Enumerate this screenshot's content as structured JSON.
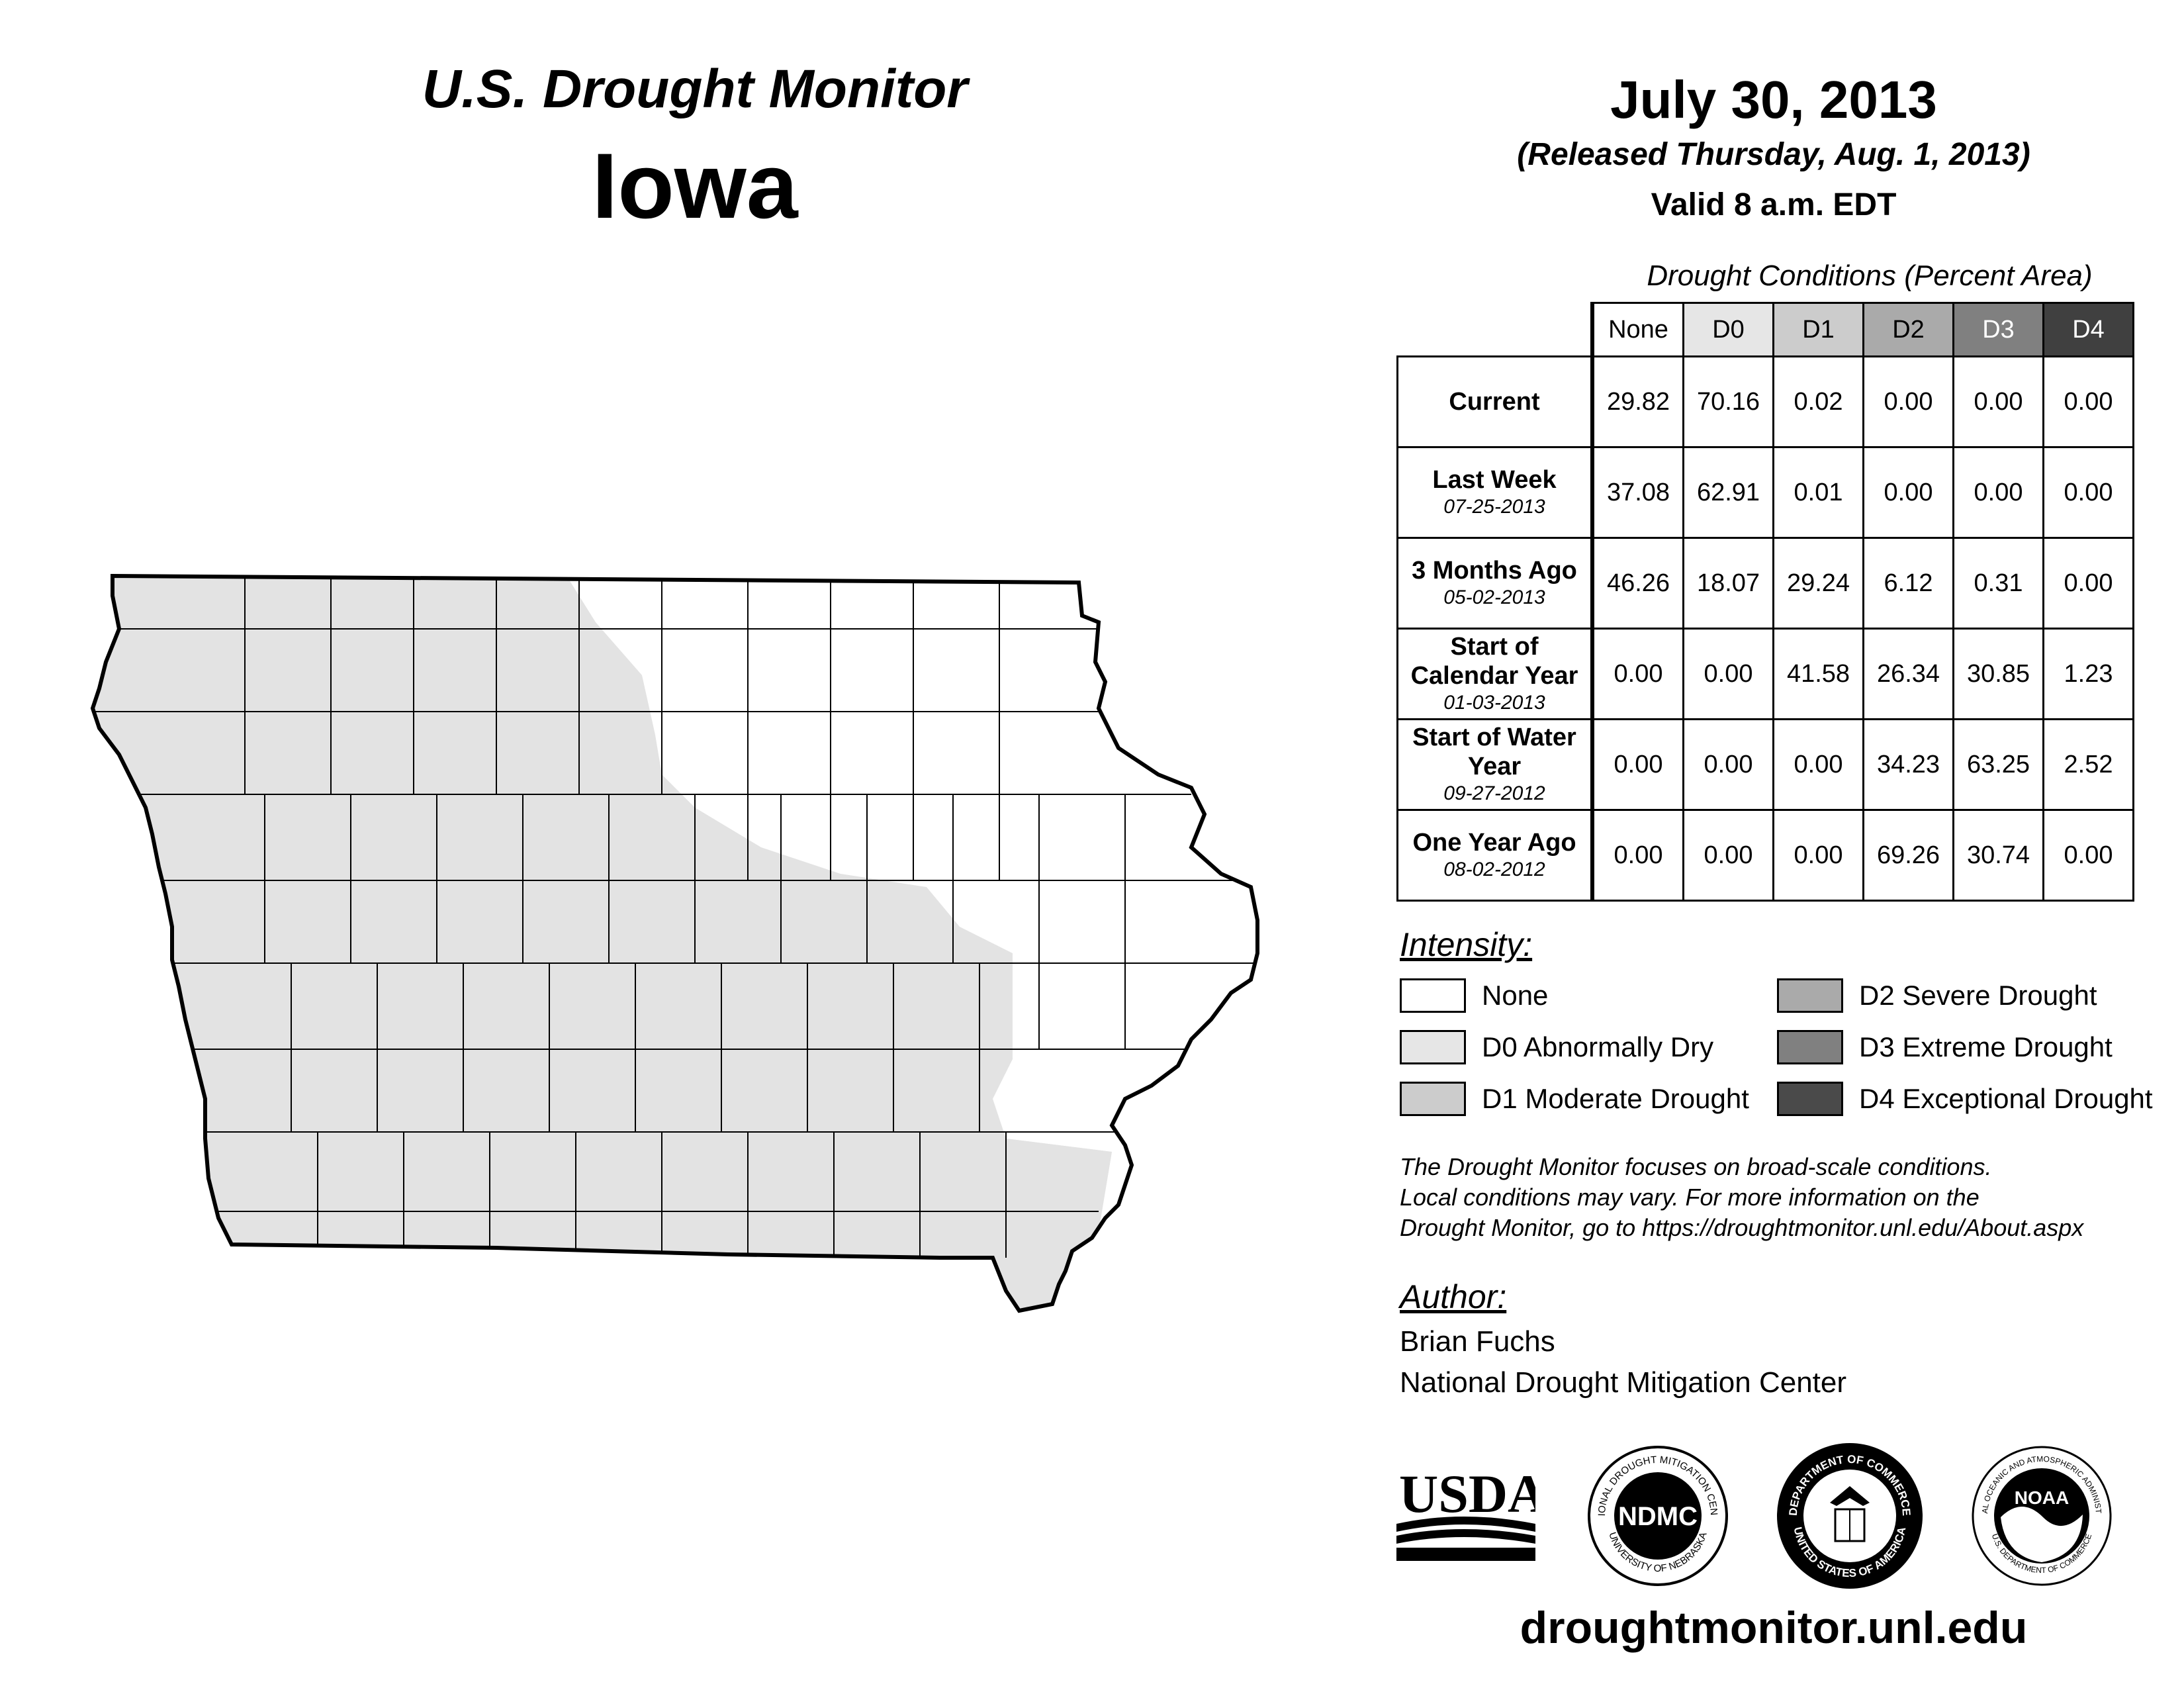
{
  "header": {
    "product": "U.S. Drought Monitor",
    "state": "Iowa",
    "date": "July 30, 2013",
    "released": "(Released Thursday, Aug. 1, 2013)",
    "valid": "Valid 8 a.m. EDT"
  },
  "table": {
    "title": "Drought Conditions (Percent Area)",
    "columns": [
      "None",
      "D0",
      "D1",
      "D2",
      "D3",
      "D4"
    ],
    "column_colors": [
      "#ffffff",
      "#e6e6e6",
      "#cccccc",
      "#aaaaaa",
      "#808080",
      "#404040"
    ],
    "rows": [
      {
        "label": "Current",
        "date": "",
        "values": [
          "29.82",
          "70.16",
          "0.02",
          "0.00",
          "0.00",
          "0.00"
        ]
      },
      {
        "label": "Last Week",
        "date": "07-25-2013",
        "values": [
          "37.08",
          "62.91",
          "0.01",
          "0.00",
          "0.00",
          "0.00"
        ]
      },
      {
        "label": "3 Months Ago",
        "date": "05-02-2013",
        "values": [
          "46.26",
          "18.07",
          "29.24",
          "6.12",
          "0.31",
          "0.00"
        ]
      },
      {
        "label": "Start of Calendar Year",
        "date": "01-03-2013",
        "values": [
          "0.00",
          "0.00",
          "41.58",
          "26.34",
          "30.85",
          "1.23"
        ]
      },
      {
        "label": "Start of Water Year",
        "date": "09-27-2012",
        "values": [
          "0.00",
          "0.00",
          "0.00",
          "34.23",
          "63.25",
          "2.52"
        ]
      },
      {
        "label": "One Year Ago",
        "date": "08-02-2012",
        "values": [
          "0.00",
          "0.00",
          "0.00",
          "69.26",
          "30.74",
          "0.00"
        ]
      }
    ]
  },
  "legend": {
    "title": "Intensity:",
    "items": [
      {
        "label": "None",
        "color": "#ffffff"
      },
      {
        "label": "D0 Abnormally Dry",
        "color": "#e6e6e6"
      },
      {
        "label": "D1 Moderate Drought",
        "color": "#cccccc"
      },
      {
        "label": "D2 Severe Drought",
        "color": "#aaaaaa"
      },
      {
        "label": "D3 Extreme Drought",
        "color": "#808080"
      },
      {
        "label": "D4 Exceptional Drought",
        "color": "#4a4a4a"
      }
    ]
  },
  "note": {
    "line1": "The Drought Monitor focuses on broad-scale conditions.",
    "line2": "Local conditions may vary. For more information on the",
    "line3": "Drought Monitor, go to https://droughtmonitor.unl.edu/About.aspx"
  },
  "author": {
    "title": "Author:",
    "name": "Brian Fuchs",
    "org": "National Drought Mitigation Center"
  },
  "logos": {
    "usda": "USDA",
    "ndmc": "NDMC",
    "ndmc_ring_top": "NATIONAL DROUGHT MITIGATION CENTER",
    "ndmc_ring_bottom": "UNIVERSITY OF NEBRASKA",
    "doc_ring_top": "DEPARTMENT OF COMMERCE",
    "doc_ring_bottom": "UNITED STATES OF AMERICA",
    "noaa": "NOAA",
    "noaa_ring_top": "NATIONAL OCEANIC AND ATMOSPHERIC ADMINISTRATION",
    "noaa_ring_bottom": "U.S. DEPARTMENT OF COMMERCE"
  },
  "website": "droughtmonitor.unl.edu",
  "map": {
    "categories_shown": [
      "None",
      "D0 Abnormally Dry",
      "D1 Moderate Drought"
    ],
    "colors": {
      "none": "#ffffff",
      "d0": "#e3e3e3",
      "d1": "#cccccc"
    }
  }
}
